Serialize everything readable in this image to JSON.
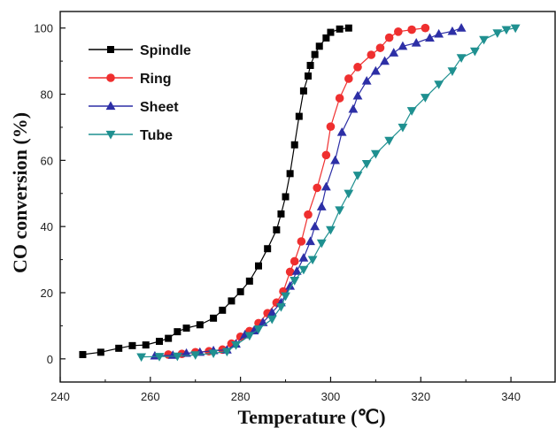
{
  "chart_data": {
    "type": "line",
    "xlabel": "Temperature (℃)",
    "ylabel": "CO conversion (%)",
    "xlim": [
      240,
      350
    ],
    "ylim": [
      -7,
      105
    ],
    "x_ticks": [
      "240",
      "260",
      "280",
      "300",
      "320",
      "340"
    ],
    "y_ticks": [
      "0",
      "20",
      "40",
      "60",
      "80",
      "100"
    ],
    "grid": false,
    "legend_position": "top-left",
    "series": [
      {
        "name": "Spindle",
        "color": "#000000",
        "marker": "square",
        "points": [
          [
            245,
            1.3
          ],
          [
            249,
            2.0
          ],
          [
            253,
            3.2
          ],
          [
            256,
            4.0
          ],
          [
            259,
            4.2
          ],
          [
            262,
            5.3
          ],
          [
            264,
            6.2
          ],
          [
            266,
            8.2
          ],
          [
            268,
            9.3
          ],
          [
            271,
            10.3
          ],
          [
            274,
            12.3
          ],
          [
            276,
            14.7
          ],
          [
            278,
            17.5
          ],
          [
            280,
            20.3
          ],
          [
            282,
            23.5
          ],
          [
            284,
            28.1
          ],
          [
            286,
            33.3
          ],
          [
            288,
            39.0
          ],
          [
            289,
            43.8
          ],
          [
            290,
            49.0
          ],
          [
            291,
            56.0
          ],
          [
            292,
            64.7
          ],
          [
            293,
            73.3
          ],
          [
            294,
            81.0
          ],
          [
            295,
            85.5
          ],
          [
            295.5,
            88.7
          ],
          [
            296.5,
            92.0
          ],
          [
            297.5,
            94.5
          ],
          [
            299,
            97.0
          ],
          [
            300,
            98.7
          ],
          [
            302,
            99.7
          ],
          [
            304,
            100
          ]
        ]
      },
      {
        "name": "Ring",
        "color": "#ef2f2f",
        "marker": "circle",
        "points": [
          [
            264,
            1.3
          ],
          [
            267,
            1.5
          ],
          [
            270,
            2.0
          ],
          [
            273,
            2.3
          ],
          [
            276,
            2.8
          ],
          [
            278,
            4.6
          ],
          [
            280,
            6.7
          ],
          [
            282,
            8.4
          ],
          [
            284,
            10.8
          ],
          [
            286,
            13.8
          ],
          [
            288,
            17.0
          ],
          [
            289.5,
            20.4
          ],
          [
            291,
            26.3
          ],
          [
            292,
            29.5
          ],
          [
            293.5,
            35.5
          ],
          [
            295,
            43.6
          ],
          [
            297,
            51.7
          ],
          [
            299,
            61.6
          ],
          [
            300,
            70.2
          ],
          [
            302,
            78.8
          ],
          [
            304,
            84.7
          ],
          [
            306,
            88.2
          ],
          [
            309,
            91.9
          ],
          [
            311,
            94.0
          ],
          [
            313,
            97.1
          ],
          [
            315,
            98.9
          ],
          [
            318,
            99.5
          ],
          [
            321,
            100
          ]
        ]
      },
      {
        "name": "Sheet",
        "color": "#2d2fa6",
        "marker": "triangle-up",
        "points": [
          [
            261,
            0.9
          ],
          [
            265,
            1.1
          ],
          [
            268,
            1.7
          ],
          [
            271,
            2.0
          ],
          [
            274,
            2.5
          ],
          [
            277,
            2.7
          ],
          [
            279,
            4.5
          ],
          [
            281,
            7.3
          ],
          [
            283,
            8.5
          ],
          [
            285,
            11.0
          ],
          [
            287,
            14.0
          ],
          [
            289,
            17.0
          ],
          [
            291,
            22.0
          ],
          [
            292.5,
            26.5
          ],
          [
            294,
            30.5
          ],
          [
            295.5,
            35.5
          ],
          [
            296.5,
            40.0
          ],
          [
            298,
            46.0
          ],
          [
            299,
            52.0
          ],
          [
            301,
            60.0
          ],
          [
            302.5,
            68.5
          ],
          [
            305,
            75.5
          ],
          [
            306,
            79.5
          ],
          [
            308,
            84.0
          ],
          [
            310,
            87.0
          ],
          [
            312,
            90.0
          ],
          [
            314,
            92.5
          ],
          [
            316,
            94.5
          ],
          [
            319,
            95.5
          ],
          [
            322,
            97.0
          ],
          [
            324,
            98.2
          ],
          [
            327,
            99.0
          ],
          [
            329,
            100
          ]
        ]
      },
      {
        "name": "Tube",
        "color": "#1f9090",
        "marker": "triangle-down",
        "points": [
          [
            258,
            0.6
          ],
          [
            262,
            0.7
          ],
          [
            266,
            0.8
          ],
          [
            270,
            1.2
          ],
          [
            274,
            1.7
          ],
          [
            277,
            2.2
          ],
          [
            279,
            4.2
          ],
          [
            282,
            7.0
          ],
          [
            284,
            9.0
          ],
          [
            287,
            12.0
          ],
          [
            289,
            15.7
          ],
          [
            290,
            19.0
          ],
          [
            292,
            23.7
          ],
          [
            294,
            27.0
          ],
          [
            296,
            30.0
          ],
          [
            298,
            35.0
          ],
          [
            300,
            39.0
          ],
          [
            302,
            45.0
          ],
          [
            304,
            50.0
          ],
          [
            306,
            55.5
          ],
          [
            308,
            59.0
          ],
          [
            310,
            62.0
          ],
          [
            313,
            66.0
          ],
          [
            316,
            70.0
          ],
          [
            318,
            75.0
          ],
          [
            321,
            79.0
          ],
          [
            324,
            83.0
          ],
          [
            327,
            87.0
          ],
          [
            329,
            91.0
          ],
          [
            332,
            93.0
          ],
          [
            334,
            96.5
          ],
          [
            337,
            98.5
          ],
          [
            339,
            99.5
          ],
          [
            341,
            100
          ]
        ]
      }
    ]
  }
}
